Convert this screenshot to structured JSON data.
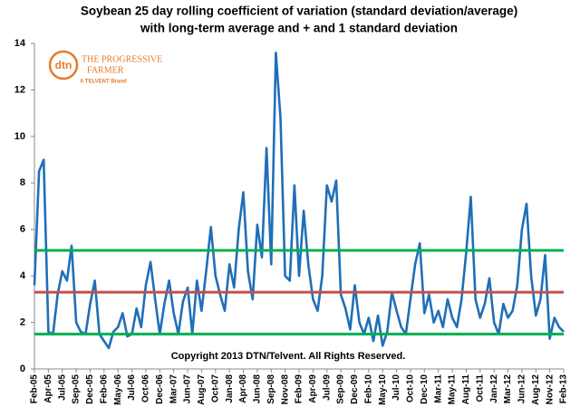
{
  "chart_data": {
    "type": "line",
    "title": [
      "Soybean 25 day rolling coefficient of variation (standard deviation/average)",
      "with long-term average and + and 1 standard deviation"
    ],
    "annotation": "Copyright 2013 DTN/Telvent. All Rights Reserved.",
    "logo": {
      "mark": "dtn",
      "line1": "THE PROGRESSIVE",
      "line2": "FARMER",
      "line3": "A TELVENT Brand"
    },
    "categories": [
      "Feb-05",
      null,
      null,
      "Apr-05",
      null,
      null,
      "Jul-05",
      null,
      null,
      "Sep-05",
      null,
      null,
      "Dec-05",
      null,
      null,
      "Feb-06",
      null,
      null,
      "May-06",
      null,
      null,
      "Jul-06",
      null,
      null,
      "Oct-06",
      null,
      null,
      "Dec-06",
      null,
      null,
      "Mar-07",
      null,
      null,
      "Jun-07",
      null,
      null,
      "Aug-07",
      null,
      null,
      "Oct-07",
      null,
      null,
      "Jan-08",
      null,
      null,
      "Apr-08",
      null,
      null,
      "Jun-08",
      null,
      null,
      "Sep-08",
      null,
      null,
      "Nov-08",
      null,
      null,
      "Feb-09",
      null,
      null,
      "Apr-09",
      null,
      null,
      "Jul-09",
      null,
      null,
      "Sep-09",
      null,
      null,
      "Dec-09",
      null,
      null,
      "Feb-10",
      null,
      null,
      "May-10",
      null,
      null,
      "Jul-10",
      null,
      null,
      "Oct-10",
      null,
      null,
      "Dec-10",
      null,
      null,
      "Mar-11",
      null,
      null,
      "May-11",
      null,
      null,
      "Aug-11",
      null,
      null,
      "Oct-11",
      null,
      null,
      "Jan-12",
      null,
      null,
      "Mar-12",
      null,
      null,
      "Jun-12",
      null,
      null,
      "Aug-12",
      null,
      null,
      "Nov-12",
      null,
      null,
      "Feb-13"
    ],
    "series": [
      {
        "color": "#1f6fb8",
        "values": [
          3.6,
          8.5,
          9.0,
          1.6,
          1.5,
          3.2,
          4.2,
          3.8,
          5.3,
          2.0,
          1.6,
          1.5,
          2.8,
          3.8,
          1.5,
          1.2,
          0.9,
          1.6,
          1.8,
          2.4,
          1.4,
          1.5,
          2.6,
          1.8,
          3.6,
          4.6,
          3.0,
          1.5,
          2.8,
          3.8,
          2.4,
          1.5,
          2.9,
          3.5,
          1.5,
          3.8,
          2.5,
          4.2,
          6.1,
          4.0,
          3.2,
          2.5,
          4.5,
          3.5,
          6.0,
          7.6,
          4.2,
          3.0,
          6.2,
          4.8,
          9.5,
          4.5,
          13.6,
          10.8,
          4.0,
          3.8,
          7.9,
          4.0,
          6.8,
          4.5,
          3.0,
          2.5,
          4.0,
          7.9,
          7.2,
          8.1,
          3.2,
          2.6,
          1.7,
          3.6,
          2.0,
          1.5,
          2.2,
          1.2,
          2.3,
          1.0,
          1.6,
          3.3,
          2.5,
          1.8,
          1.5,
          3.0,
          4.5,
          5.4,
          2.4,
          3.2,
          2.0,
          2.5,
          1.8,
          3.0,
          2.2,
          1.8,
          3.0,
          5.0,
          7.4,
          3.0,
          2.2,
          2.8,
          3.9,
          2.0,
          1.5,
          2.8,
          2.2,
          2.5,
          3.6,
          6.0,
          7.1,
          4.0,
          2.3,
          3.0,
          4.9,
          1.3,
          2.2,
          1.8,
          1.6
        ]
      }
    ],
    "reference_lines": [
      {
        "value": 5.1,
        "color": "#00b050"
      },
      {
        "value": 3.3,
        "color": "#c0504d"
      },
      {
        "value": 1.5,
        "color": "#00b050"
      }
    ],
    "ylim": [
      0,
      14
    ],
    "yticks": [
      0,
      2,
      4,
      6,
      8,
      10,
      12,
      14
    ],
    "grid": false
  }
}
